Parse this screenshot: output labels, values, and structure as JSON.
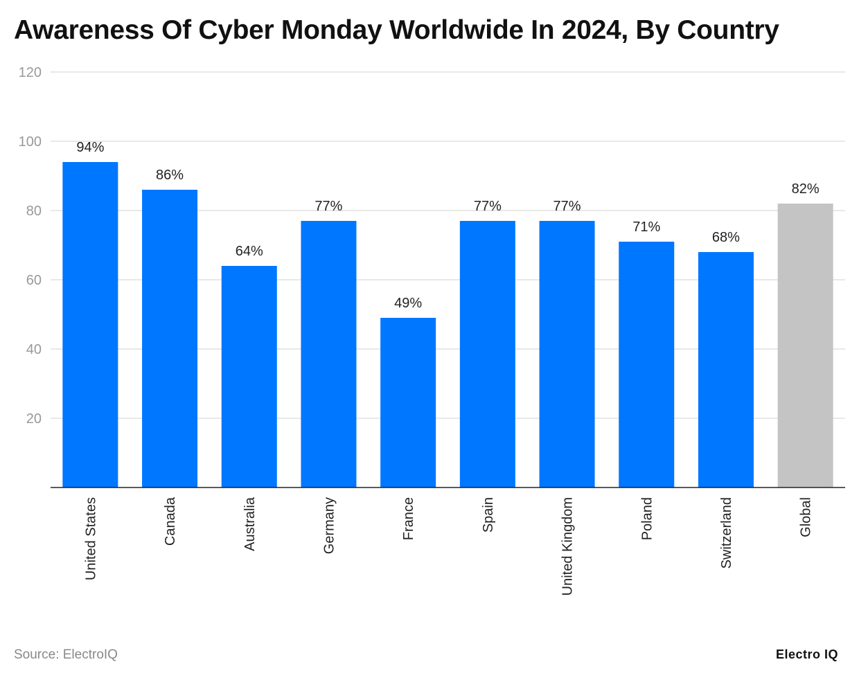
{
  "chart_data": {
    "type": "bar",
    "title": "Awareness Of Cyber Monday Worldwide In 2024, By Country",
    "categories": [
      "United States",
      "Canada",
      "Australia",
      "Germany",
      "France",
      "Spain",
      "United Kingdom",
      "Poland",
      "Switzerland",
      "Global"
    ],
    "values": [
      94,
      86,
      64,
      77,
      49,
      77,
      77,
      71,
      68,
      82
    ],
    "data_labels": [
      "94%",
      "86%",
      "64%",
      "77%",
      "49%",
      "77%",
      "77%",
      "71%",
      "68%",
      "82%"
    ],
    "xlabel": "",
    "ylabel": "",
    "ylim": [
      0,
      120
    ],
    "yticks": [
      20,
      40,
      60,
      80,
      100,
      120
    ],
    "grid": true,
    "colors": {
      "bar": "#0077FF",
      "highlight_bar": "#C4C4C4",
      "grid": "#E0E0E0",
      "axis": "#222222"
    },
    "highlight_category": "Global"
  },
  "footer": {
    "source": "Source: ElectroIQ",
    "logo": "Electro IQ"
  }
}
